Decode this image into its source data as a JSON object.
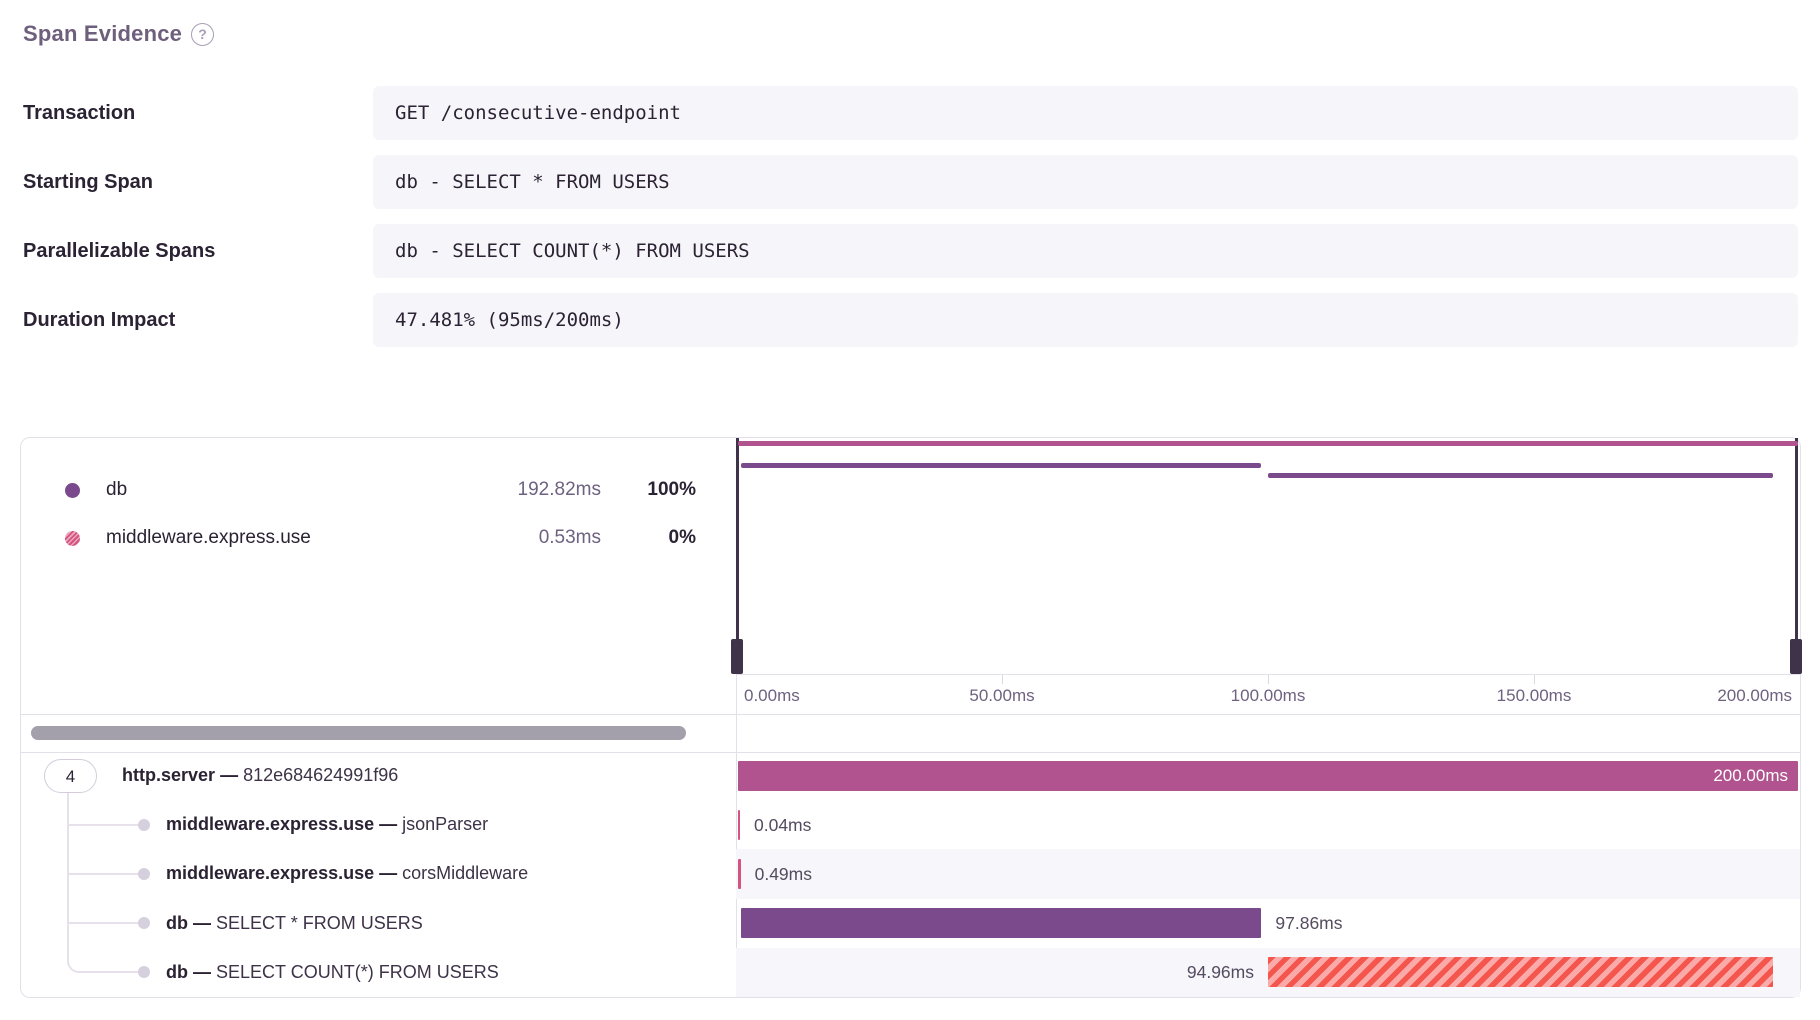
{
  "title": "Span Evidence",
  "help_icon": "?",
  "colors": {
    "magenta": "#b0538f",
    "purple": "#7a4a8c",
    "pink": "#d5537e",
    "stripe_red": "#f4564e",
    "stripe_pink": "#f9aaa9",
    "row_stripe": "#f7f6fa",
    "border": "#e4e0e9",
    "handle": "#3f3349",
    "thumb": "#a39fab",
    "connector": "#e6e1ea",
    "box_bg": "#f6f5f9"
  },
  "evidence": {
    "rows": [
      {
        "label": "Transaction",
        "value": "GET /consecutive-endpoint"
      },
      {
        "label": "Starting Span",
        "value": "db - SELECT * FROM USERS"
      },
      {
        "label": "Parallelizable Spans",
        "value": "db - SELECT COUNT(*) FROM USERS"
      },
      {
        "label": "Duration Impact",
        "value": "47.481% (95ms/200ms)"
      }
    ]
  },
  "chart_data": {
    "type": "span-waterfall",
    "time_axis": {
      "unit": "ms",
      "range_ms": [
        0,
        200
      ],
      "ticks": [
        "0.00ms",
        "50.00ms",
        "100.00ms",
        "150.00ms",
        "200.00ms"
      ]
    },
    "legend": [
      {
        "label": "db",
        "duration": "192.82ms",
        "percent": "100%",
        "swatch": "purple-solid"
      },
      {
        "label": "middleware.express.use",
        "duration": "0.53ms",
        "percent": "0%",
        "swatch": "pink-dotted"
      }
    ],
    "root_children_count": "4",
    "spans": [
      {
        "op": "http.server",
        "separator": "—",
        "description": "812e684624991f96",
        "start_ms": 0,
        "duration_ms": 200,
        "duration_label": "200.00ms",
        "style": "magenta",
        "label_position": "inside",
        "depth": 0
      },
      {
        "op": "middleware.express.use",
        "separator": "—",
        "description": "jsonParser",
        "start_ms": 0.2,
        "duration_ms": 0.04,
        "duration_label": "0.04ms",
        "style": "pink",
        "label_position": "right",
        "depth": 1
      },
      {
        "op": "middleware.express.use",
        "separator": "—",
        "description": "corsMiddleware",
        "start_ms": 0.3,
        "duration_ms": 0.49,
        "duration_label": "0.49ms",
        "style": "pink",
        "label_position": "right",
        "depth": 1
      },
      {
        "op": "db",
        "separator": "—",
        "description": "SELECT * FROM USERS",
        "start_ms": 0.9,
        "duration_ms": 97.86,
        "duration_label": "97.86ms",
        "style": "purple",
        "label_position": "right",
        "depth": 1
      },
      {
        "op": "db",
        "separator": "—",
        "description": "SELECT COUNT(*) FROM USERS",
        "start_ms": 100.0,
        "duration_ms": 94.96,
        "duration_label": "94.96ms",
        "style": "hatched-red",
        "label_position": "left",
        "depth": 1
      }
    ],
    "minimap_line_span_indexes": [
      0,
      3,
      4
    ],
    "striped_row_indexes": [
      2,
      4
    ]
  }
}
